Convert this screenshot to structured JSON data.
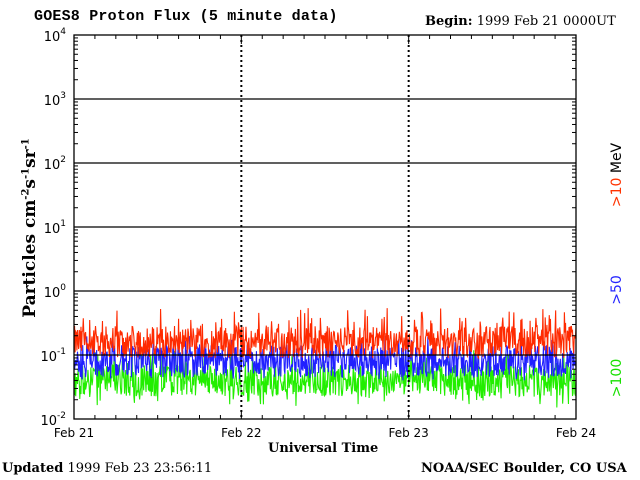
{
  "header": {
    "title": "GOES8 Proton Flux (5 minute data)",
    "begin_label": "Begin:",
    "begin_value": "1999 Feb 21 0000UT"
  },
  "footer": {
    "updated_label": "Updated",
    "updated_value": "1999 Feb 23 23:56:11",
    "credit": "NOAA/SEC Boulder, CO USA"
  },
  "colors": {
    "gt10": "#ff2a00",
    "gt50": "#2020ff",
    "gt100": "#22ee00"
  },
  "chart_data": {
    "type": "line",
    "title": "GOES8 Proton Flux (5 minute data)",
    "xlabel": "Universal Time",
    "ylabel": "Particles cm-2s-1sr-1",
    "yscale": "log",
    "ylim": [
      0.01,
      10000
    ],
    "grid": true,
    "x_ticks": [
      "Feb 21",
      "Feb 22",
      "Feb 23",
      "Feb 24"
    ],
    "y_ticks": [
      "10^-2",
      "10^-1",
      "10^0",
      "10^1",
      "10^2",
      "10^3",
      "10^4"
    ],
    "legend": {
      "placement": "right",
      "unit": "MeV",
      "entries": [
        ">10",
        ">50",
        ">100"
      ]
    },
    "series": [
      {
        "name": ">10",
        "color": "#ff2a00",
        "baseline": 0.16,
        "min": 0.09,
        "max": 0.55
      },
      {
        "name": ">50",
        "color": "#2020ff",
        "baseline": 0.08,
        "min": 0.04,
        "max": 0.2
      },
      {
        "name": ">100",
        "color": "#22ee00",
        "baseline": 0.04,
        "min": 0.015,
        "max": 0.12
      }
    ]
  }
}
